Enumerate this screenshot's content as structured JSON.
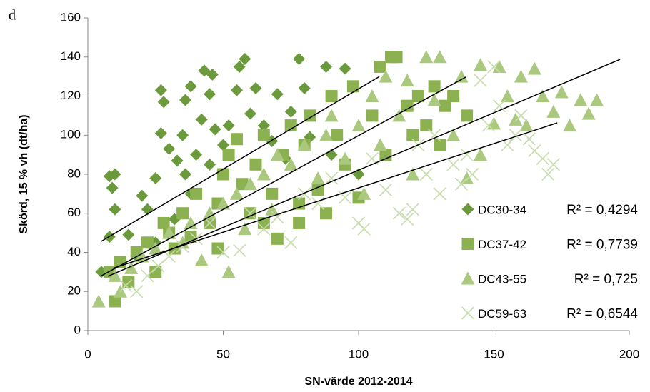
{
  "chart_data": {
    "type": "scatter",
    "panel_label": "d",
    "xlabel": "SN-värde 2012-2014",
    "ylabel": "Skörd, 15 % vh (dt/ha)",
    "xlim": [
      0,
      200
    ],
    "xticks": [
      0,
      50,
      100,
      150,
      200
    ],
    "ylim": [
      0,
      160
    ],
    "yticks": [
      0,
      20,
      40,
      60,
      80,
      100,
      120,
      140,
      160
    ],
    "grid": false,
    "legend": "lower right",
    "series": [
      {
        "name": "DC30-34",
        "color": "#6b9a3c",
        "marker": "diamond",
        "r2_label": "R² = 0,4294",
        "x": [
          5,
          8,
          8,
          10,
          9,
          10,
          15,
          20,
          22,
          25,
          27,
          27,
          28,
          30,
          33,
          35,
          36,
          38,
          40,
          42,
          43,
          45,
          46,
          47,
          50,
          52,
          55,
          56,
          58,
          60,
          62,
          65,
          68,
          70,
          73,
          75,
          78,
          80,
          82,
          88,
          95,
          90,
          100,
          36,
          38,
          45,
          32,
          18,
          25
        ],
        "y": [
          30,
          48,
          79,
          80,
          73,
          62,
          49,
          69,
          62,
          78,
          101,
          123,
          117,
          93,
          87,
          100,
          118,
          125,
          90,
          108,
          133,
          121,
          131,
          103,
          95,
          105,
          123,
          135,
          139,
          111,
          124,
          105,
          97,
          121,
          88,
          112,
          139,
          124,
          99,
          135,
          134,
          90,
          80,
          80,
          70,
          85,
          57,
          38,
          45
        ],
        "trend": {
          "x": [
            5,
            107.7
          ],
          "y": [
            45.7,
            130
          ]
        }
      },
      {
        "name": "DC37-42",
        "color": "#8cb150",
        "marker": "square",
        "r2_label": "R² = 0,7739",
        "x": [
          8,
          10,
          12,
          15,
          18,
          22,
          25,
          28,
          30,
          32,
          35,
          38,
          40,
          45,
          48,
          50,
          52,
          55,
          57,
          60,
          62,
          65,
          68,
          70,
          72,
          75,
          78,
          80,
          82,
          85,
          88,
          90,
          92,
          95,
          98,
          100,
          105,
          108,
          110,
          112,
          114,
          118,
          120,
          122,
          125,
          128,
          130,
          132,
          135,
          140,
          78,
          48,
          65
        ],
        "y": [
          30,
          15,
          35,
          25,
          40,
          45,
          30,
          55,
          50,
          42,
          60,
          48,
          70,
          55,
          65,
          80,
          90,
          98,
          75,
          60,
          85,
          100,
          70,
          47,
          90,
          105,
          55,
          95,
          110,
          72,
          60,
          120,
          100,
          85,
          125,
          68,
          110,
          135,
          90,
          140,
          140,
          115,
          100,
          120,
          105,
          125,
          95,
          115,
          120,
          110,
          65,
          42,
          55
        ],
        "trend": {
          "x": [
            4.7,
            139.6
          ],
          "y": [
            27.8,
            129.7
          ]
        }
      },
      {
        "name": "DC43-55",
        "color": "#aac97e",
        "marker": "triangle",
        "r2_label": "R² = 0,725",
        "x": [
          4,
          10,
          12,
          16,
          20,
          25,
          30,
          35,
          38,
          42,
          45,
          50,
          52,
          55,
          58,
          60,
          65,
          68,
          70,
          75,
          80,
          85,
          88,
          90,
          95,
          100,
          102,
          105,
          108,
          110,
          115,
          118,
          120,
          125,
          128,
          130,
          135,
          138,
          140,
          145,
          150,
          152,
          155,
          158,
          160,
          162,
          165,
          168,
          172,
          175,
          178,
          182,
          185,
          188,
          145
        ],
        "y": [
          15,
          28,
          20,
          32,
          38,
          42,
          50,
          45,
          55,
          36,
          60,
          65,
          30,
          70,
          52,
          75,
          80,
          62,
          90,
          85,
          95,
          78,
          100,
          110,
          88,
          105,
          70,
          120,
          95,
          130,
          110,
          128,
          80,
          140,
          118,
          140,
          100,
          130,
          78,
          136,
          106,
          135,
          120,
          108,
          130,
          105,
          134,
          120,
          112,
          122,
          105,
          118,
          111,
          118,
          90
        ],
        "trend": {
          "x": [
            7.4,
            196.6
          ],
          "y": [
            27.8,
            138.8
          ]
        }
      },
      {
        "name": "DC59-63",
        "color": "#c6dcaa",
        "marker": "x",
        "r2_label": "R² = 0,6544",
        "x": [
          14,
          18,
          22,
          26,
          30,
          35,
          40,
          45,
          50,
          56,
          60,
          65,
          70,
          75,
          80,
          85,
          90,
          95,
          100,
          102,
          105,
          110,
          115,
          118,
          120,
          122,
          125,
          128,
          130,
          135,
          138,
          140,
          142,
          145,
          148,
          150,
          152,
          155,
          158,
          160,
          163,
          165,
          168,
          170,
          172
        ],
        "y": [
          23,
          20,
          28,
          33,
          38,
          43,
          47,
          55,
          40,
          41,
          60,
          52,
          58,
          45,
          70,
          65,
          78,
          68,
          55,
          52,
          88,
          72,
          60,
          57,
          62,
          95,
          80,
          100,
          70,
          85,
          75,
          90,
          80,
          128,
          105,
          135,
          115,
          95,
          100,
          110,
          98,
          92,
          88,
          80,
          85
        ],
        "trend": {
          "x": [
            9.8,
            173.4
          ],
          "y": [
            32.1,
            106.3
          ]
        }
      }
    ]
  }
}
